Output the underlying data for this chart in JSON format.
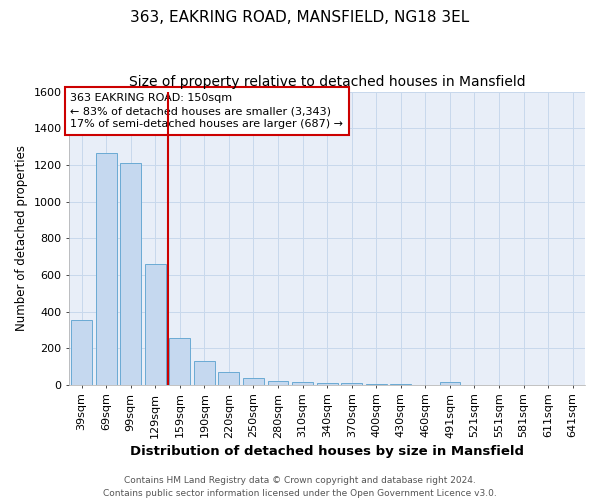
{
  "title": "363, EAKRING ROAD, MANSFIELD, NG18 3EL",
  "subtitle": "Size of property relative to detached houses in Mansfield",
  "xlabel": "Distribution of detached houses by size in Mansfield",
  "ylabel": "Number of detached properties",
  "categories": [
    "39sqm",
    "69sqm",
    "99sqm",
    "129sqm",
    "159sqm",
    "190sqm",
    "220sqm",
    "250sqm",
    "280sqm",
    "310sqm",
    "340sqm",
    "370sqm",
    "400sqm",
    "430sqm",
    "460sqm",
    "491sqm",
    "521sqm",
    "551sqm",
    "581sqm",
    "611sqm",
    "641sqm"
  ],
  "values": [
    355,
    1265,
    1210,
    660,
    255,
    130,
    70,
    40,
    20,
    15,
    10,
    10,
    5,
    5,
    0,
    15,
    0,
    0,
    0,
    0,
    0
  ],
  "bar_color": "#c5d8ef",
  "bar_edge_color": "#6aaad4",
  "grid_color": "#c8d8ec",
  "background_color": "#ffffff",
  "plot_bg_color": "#e8eef8",
  "vline_color": "#cc0000",
  "vline_x_index": 4,
  "annotation_text": "363 EAKRING ROAD: 150sqm\n← 83% of detached houses are smaller (3,343)\n17% of semi-detached houses are larger (687) →",
  "annotation_box_color": "white",
  "annotation_box_edge_color": "#cc0000",
  "footnote": "Contains HM Land Registry data © Crown copyright and database right 2024.\nContains public sector information licensed under the Open Government Licence v3.0.",
  "ylim": [
    0,
    1600
  ],
  "title_fontsize": 11,
  "subtitle_fontsize": 10,
  "xlabel_fontsize": 9.5,
  "ylabel_fontsize": 8.5,
  "tick_fontsize": 8,
  "footnote_fontsize": 6.5
}
